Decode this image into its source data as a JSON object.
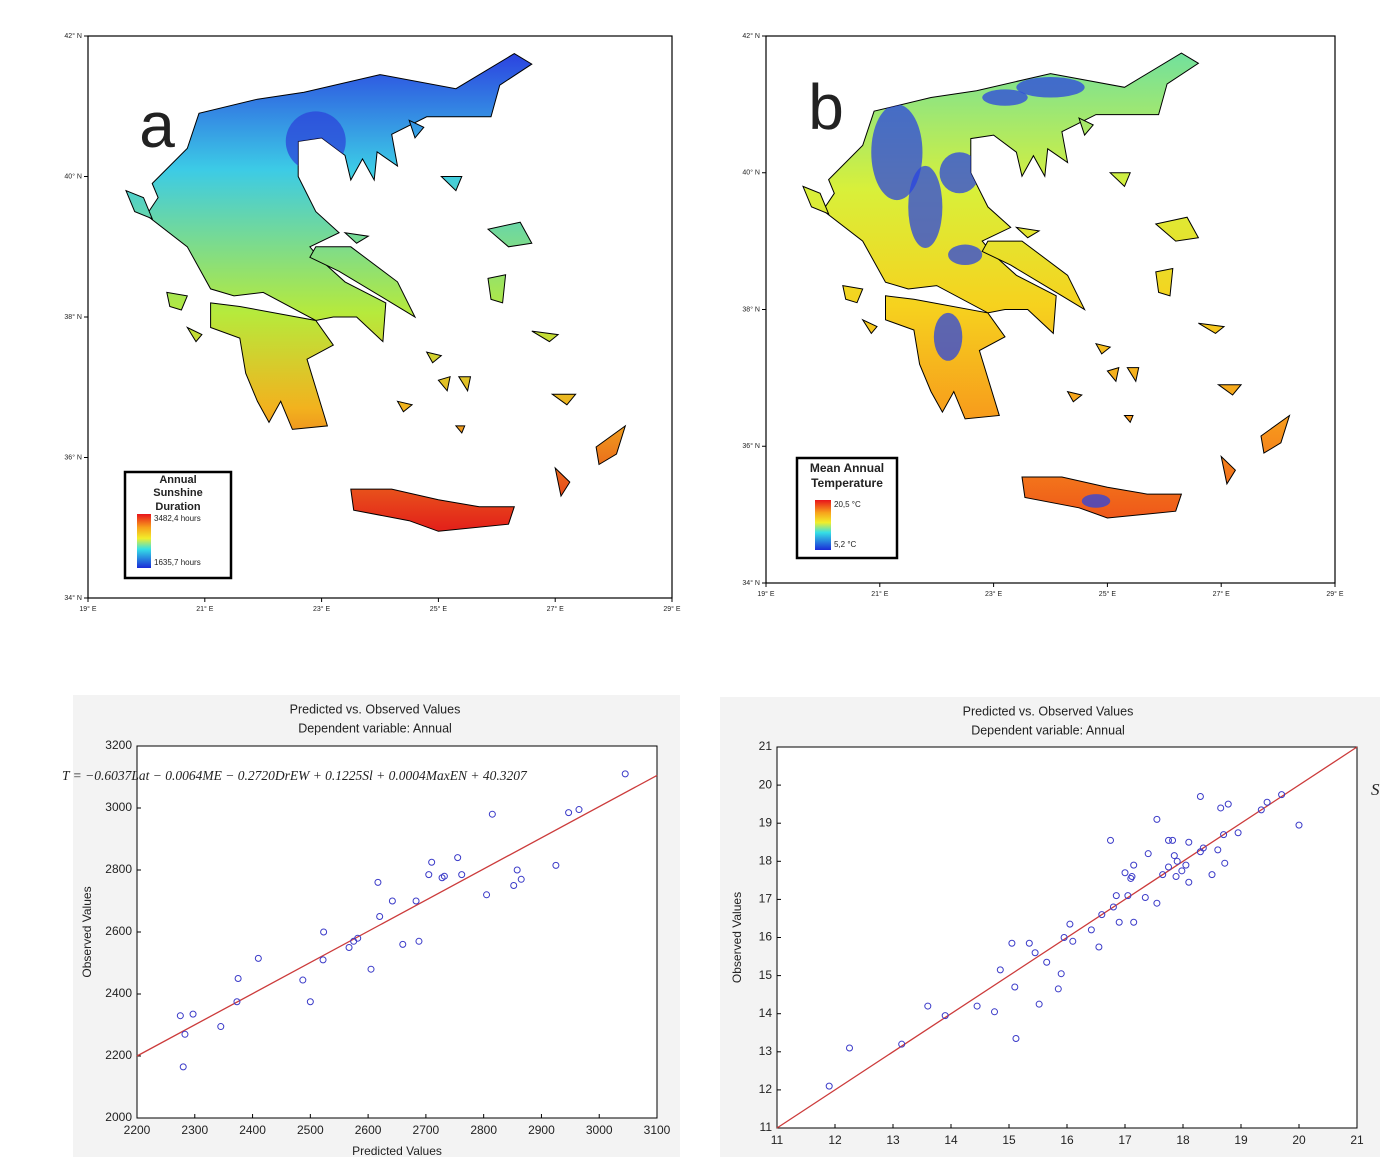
{
  "maps": [
    {
      "label": "a",
      "legend": {
        "title": [
          "Annual",
          "Sunshine",
          "Duration"
        ],
        "max_label": "3482,4 hours",
        "min_label": "1635,7 hours"
      },
      "lat_ticks": [
        {
          "value": 42,
          "label": "42° N"
        },
        {
          "value": 40,
          "label": "40° N"
        },
        {
          "value": 38,
          "label": "38° N"
        },
        {
          "value": 36,
          "label": "36° N"
        },
        {
          "value": 34,
          "label": "34° N"
        }
      ],
      "lon_ticks": [
        {
          "value": 19,
          "label": "19° E"
        },
        {
          "value": 21,
          "label": "21° E"
        },
        {
          "value": 23,
          "label": "23° E"
        },
        {
          "value": 25,
          "label": "25° E"
        },
        {
          "value": 27,
          "label": "27° E"
        },
        {
          "value": 29,
          "label": "29° E"
        }
      ]
    },
    {
      "label": "b",
      "legend": {
        "title": [
          "Mean Annual",
          "Temperature"
        ],
        "max_label": "20,5 °C",
        "min_label": "5,2 °C"
      },
      "lat_ticks": [
        {
          "value": 42,
          "label": "42° N"
        },
        {
          "value": 40,
          "label": "40° N"
        },
        {
          "value": 38,
          "label": "38° N"
        },
        {
          "value": 36,
          "label": "36° N"
        },
        {
          "value": 34,
          "label": "34° N"
        }
      ],
      "lon_ticks": [
        {
          "value": 19,
          "label": "19° E"
        },
        {
          "value": 21,
          "label": "21° E"
        },
        {
          "value": 23,
          "label": "23° E"
        },
        {
          "value": 25,
          "label": "25° E"
        },
        {
          "value": 27,
          "label": "27° E"
        },
        {
          "value": 29,
          "label": "29° E"
        }
      ]
    }
  ],
  "chart_data": [
    {
      "type": "scatter",
      "title": [
        "Predicted vs. Observed Values",
        "Dependent variable: Annual"
      ],
      "xlabel": "Predicted Values",
      "ylabel": "Observed Values",
      "annotation": "T = −0.6037Lat − 0.0064ME − 0.2720DrEW + 0.1225Sl + 0.0004MaxEN + 40.3207",
      "x": [
        2275,
        2280,
        2283,
        2297,
        2345,
        2373,
        2375,
        2410,
        2487,
        2500,
        2522,
        2523,
        2567,
        2575,
        2582,
        2605,
        2617,
        2620,
        2642,
        2660,
        2683,
        2688,
        2705,
        2710,
        2728,
        2732,
        2755,
        2762,
        2805,
        2815,
        2852,
        2858,
        2865,
        2925,
        2947,
        2965,
        3045
      ],
      "y": [
        2330,
        2165,
        2270,
        2335,
        2295,
        2375,
        2450,
        2515,
        2445,
        2375,
        2510,
        2600,
        2550,
        2570,
        2580,
        2480,
        2760,
        2650,
        2700,
        2560,
        2700,
        2570,
        2785,
        2825,
        2775,
        2780,
        2840,
        2785,
        2720,
        2980,
        2750,
        2800,
        2770,
        2815,
        2985,
        2995,
        3110
      ],
      "color": "#3a3ac8",
      "fit_line": {
        "x": [
          2200,
          3100
        ],
        "y": [
          2200,
          3105
        ],
        "color": "#cc3b3b"
      },
      "xlim": [
        2200,
        3100
      ],
      "ylim": [
        2000,
        3200
      ],
      "xticks": [
        2200,
        2300,
        2400,
        2500,
        2600,
        2700,
        2800,
        2900,
        3000,
        3100
      ],
      "yticks": [
        2000,
        2200,
        2400,
        2600,
        2800,
        3000,
        3200
      ]
    },
    {
      "type": "scatter",
      "title": [
        "Predicted vs. Observed Values",
        "Dependent variable: Annual"
      ],
      "ylabel": "Observed Values",
      "x": [
        11.9,
        12.25,
        13.15,
        13.6,
        13.9,
        14.45,
        14.75,
        14.85,
        15.05,
        15.1,
        15.12,
        15.35,
        15.45,
        15.52,
        15.65,
        15.85,
        15.9,
        15.95,
        16.05,
        16.1,
        16.42,
        16.55,
        16.6,
        16.75,
        16.8,
        16.85,
        16.9,
        17.0,
        17.05,
        17.1,
        17.12,
        17.15,
        17.15,
        17.35,
        17.4,
        17.55,
        17.55,
        17.65,
        17.75,
        17.75,
        17.82,
        17.85,
        17.88,
        17.9,
        17.98,
        18.05,
        18.1,
        18.1,
        18.3,
        18.3,
        18.35,
        18.5,
        18.6,
        18.65,
        18.7,
        18.72,
        18.78,
        18.95,
        19.35,
        19.45,
        19.7,
        20.0
      ],
      "y": [
        12.1,
        13.1,
        13.2,
        14.2,
        13.95,
        14.2,
        14.05,
        15.15,
        15.85,
        14.7,
        13.35,
        15.85,
        15.6,
        14.25,
        15.35,
        14.65,
        15.05,
        16.0,
        16.35,
        15.9,
        16.2,
        15.75,
        16.6,
        18.55,
        16.8,
        17.1,
        16.4,
        17.7,
        17.1,
        17.55,
        17.6,
        17.9,
        16.4,
        17.05,
        18.2,
        16.9,
        19.1,
        17.65,
        17.85,
        18.55,
        18.55,
        18.15,
        17.6,
        18.0,
        17.75,
        17.9,
        17.45,
        18.5,
        18.25,
        19.7,
        18.35,
        17.65,
        18.3,
        19.4,
        18.7,
        17.95,
        19.5,
        18.75,
        19.35,
        19.55,
        19.75,
        18.95
      ],
      "color": "#3a3ac8",
      "fit_line": {
        "x": [
          11,
          21
        ],
        "y": [
          11,
          21
        ],
        "color": "#cc3b3b"
      },
      "xlim": [
        11,
        21
      ],
      "ylim": [
        11,
        21
      ],
      "xticks": [
        11,
        12,
        13,
        14,
        15,
        16,
        17,
        18,
        19,
        20,
        21
      ],
      "yticks": [
        11,
        12,
        13,
        14,
        15,
        16,
        17,
        18,
        19,
        20,
        21
      ]
    }
  ],
  "stray_text": "S"
}
